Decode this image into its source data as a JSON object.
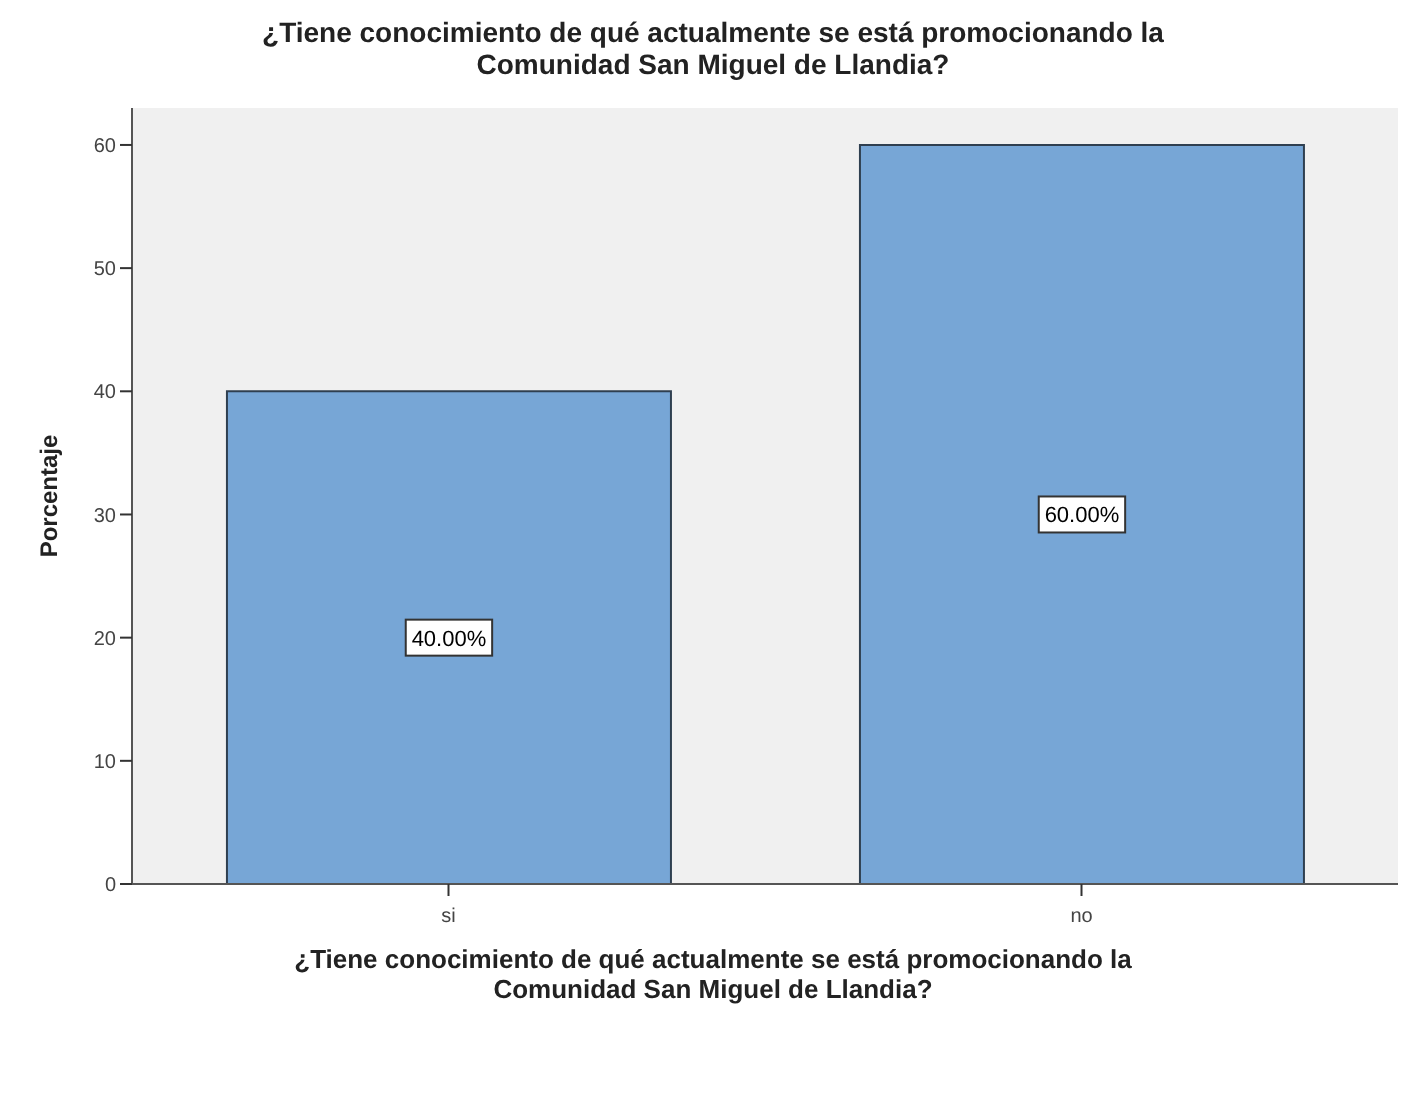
{
  "chart_data": {
    "type": "bar",
    "title": "¿Tiene conocimiento de qué actualmente se está promocionando la Comunidad San Miguel de Llandia?",
    "xlabel": "¿Tiene conocimiento de qué actualmente se está promocionando la Comunidad San Miguel de Llandia?",
    "ylabel": "Porcentaje",
    "categories": [
      "si",
      "no"
    ],
    "values": [
      40,
      60
    ],
    "color": "#77a6d6",
    "value_labels": [
      "40.00%",
      "60.00%"
    ],
    "ylim": [
      0,
      63
    ],
    "yticks": [
      0,
      10,
      20,
      30,
      40,
      50,
      60
    ]
  }
}
